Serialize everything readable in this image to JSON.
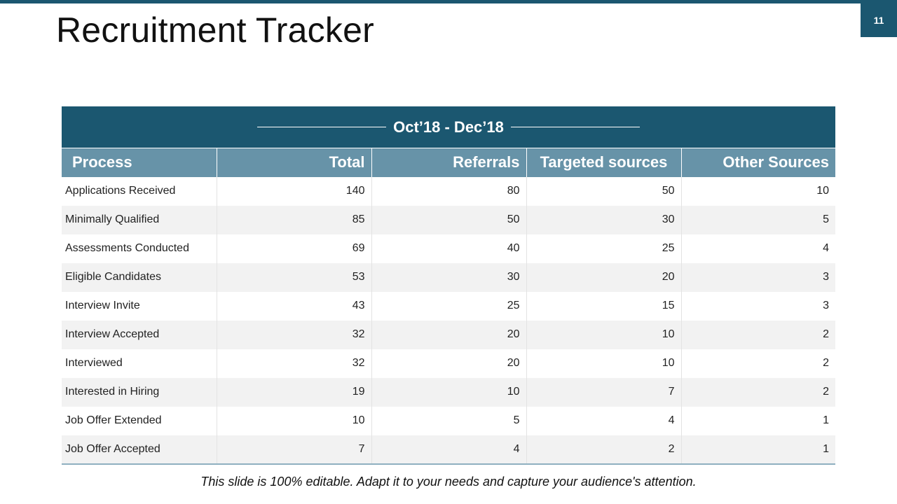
{
  "slide": {
    "title": "Recruitment Tracker",
    "page_number": "11",
    "footer": "This slide is 100% editable. Adapt it to your needs and capture your audience's attention."
  },
  "colors": {
    "header_dark": "#1b5770",
    "header_light": "#6793a8",
    "row_alt": "#f2f2f2"
  },
  "table": {
    "period": "Oct’18 - Dec’18",
    "columns": [
      "Process",
      "Total",
      "Referrals",
      "Targeted sources",
      "Other Sources"
    ],
    "rows": [
      [
        "Applications Received",
        "140",
        "80",
        "50",
        "10"
      ],
      [
        "Minimally  Qualified",
        "85",
        "50",
        "30",
        "5"
      ],
      [
        "Assessments Conducted",
        "69",
        "40",
        "25",
        "4"
      ],
      [
        "Eligible Candidates",
        "53",
        "30",
        "20",
        "3"
      ],
      [
        "Interview  Invite",
        "43",
        "25",
        "15",
        "3"
      ],
      [
        "Interview  Accepted",
        "32",
        "20",
        "10",
        "2"
      ],
      [
        "Interviewed",
        "32",
        "20",
        "10",
        "2"
      ],
      [
        "Interested  in Hiring",
        "19",
        "10",
        "7",
        "2"
      ],
      [
        "Job Offer Extended",
        "10",
        "5",
        "4",
        "1"
      ],
      [
        "Job Offer Accepted",
        "7",
        "4",
        "2",
        "1"
      ]
    ]
  }
}
